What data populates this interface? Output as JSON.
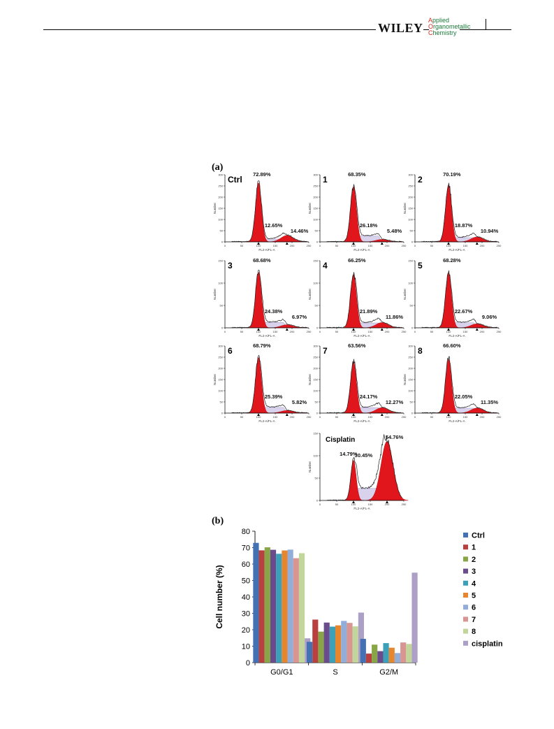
{
  "header": {
    "publisher": "WILEY",
    "journal_line1_cap": "A",
    "journal_line1_rest": "pplied",
    "journal_line2_cap": "O",
    "journal_line2_rest": "rganometallic",
    "journal_line3_cap": "C",
    "journal_line3_rest": "hemistry"
  },
  "panel_a_label": "(a)",
  "panel_b_label": "(b)",
  "histograms": {
    "x_ticks": [
      "0",
      "50",
      "100",
      "150",
      "200",
      "250"
    ],
    "x_label": "FL2-A/FL-A",
    "y_label": "Number",
    "y_ticks_300": [
      "0",
      "50",
      "100",
      "150",
      "200",
      "250",
      "300"
    ],
    "y_ticks_150": [
      "0",
      "50",
      "100",
      "150"
    ],
    "panels": [
      {
        "name": "Ctrl",
        "g1": "72.89%",
        "s": "12.65%",
        "g2": "14.46%",
        "ymax": 300
      },
      {
        "name": "1",
        "g1": "68.35%",
        "s": "26.18%",
        "g2": "5.48%",
        "ymax": 300
      },
      {
        "name": "2",
        "g1": "70.19%",
        "s": "18.87%",
        "g2": "10.94%",
        "ymax": 300
      },
      {
        "name": "3",
        "g1": "68.68%",
        "s": "24.38%",
        "g2": "6.97%",
        "ymax": 150
      },
      {
        "name": "4",
        "g1": "66.25%",
        "s": "21.89%",
        "g2": "11.86%",
        "ymax": 150
      },
      {
        "name": "5",
        "g1": "68.28%",
        "s": "22.67%",
        "g2": "9.06%",
        "ymax": 150
      },
      {
        "name": "6",
        "g1": "68.79%",
        "s": "25.39%",
        "g2": "5.82%",
        "ymax": 300
      },
      {
        "name": "7",
        "g1": "63.56%",
        "s": "24.17%",
        "g2": "12.27%",
        "ymax": 300
      },
      {
        "name": "8",
        "g1": "66.60%",
        "s": "22.05%",
        "g2": "11.35%",
        "ymax": 300
      },
      {
        "name": "Cisplatin",
        "g1": "14.79%",
        "s": "30.45%",
        "g2": "54.76%",
        "ymax": 150
      }
    ]
  },
  "chart_data": {
    "type": "bar",
    "categories": [
      "G0/G1",
      "S",
      "G2/M"
    ],
    "ylabel": "Cell number (%)",
    "xlabel": "",
    "ylim": [
      0,
      80
    ],
    "yticks": [
      "0",
      "10",
      "20",
      "30",
      "40",
      "50",
      "60",
      "70",
      "80"
    ],
    "legend_position": "right",
    "series": [
      {
        "name": "Ctrl",
        "color": "#4470b4",
        "values": [
          72.89,
          12.65,
          14.46
        ]
      },
      {
        "name": "1",
        "color": "#b8403e",
        "values": [
          68.35,
          26.18,
          5.48
        ]
      },
      {
        "name": "2",
        "color": "#88a648",
        "values": [
          70.19,
          18.87,
          10.94
        ]
      },
      {
        "name": "3",
        "color": "#6a4c8c",
        "values": [
          68.68,
          24.38,
          6.97
        ]
      },
      {
        "name": "4",
        "color": "#3ba0b8",
        "values": [
          66.25,
          21.89,
          11.86
        ]
      },
      {
        "name": "5",
        "color": "#e6862e",
        "values": [
          68.28,
          22.67,
          9.06
        ]
      },
      {
        "name": "6",
        "color": "#92add8",
        "values": [
          68.79,
          25.39,
          5.82
        ]
      },
      {
        "name": "7",
        "color": "#d99592",
        "values": [
          63.56,
          24.17,
          12.27
        ]
      },
      {
        "name": "8",
        "color": "#c2d69c",
        "values": [
          66.6,
          22.05,
          11.35
        ]
      },
      {
        "name": "cisplatin",
        "color": "#ada0c6",
        "values": [
          14.79,
          30.45,
          54.76
        ]
      }
    ]
  }
}
